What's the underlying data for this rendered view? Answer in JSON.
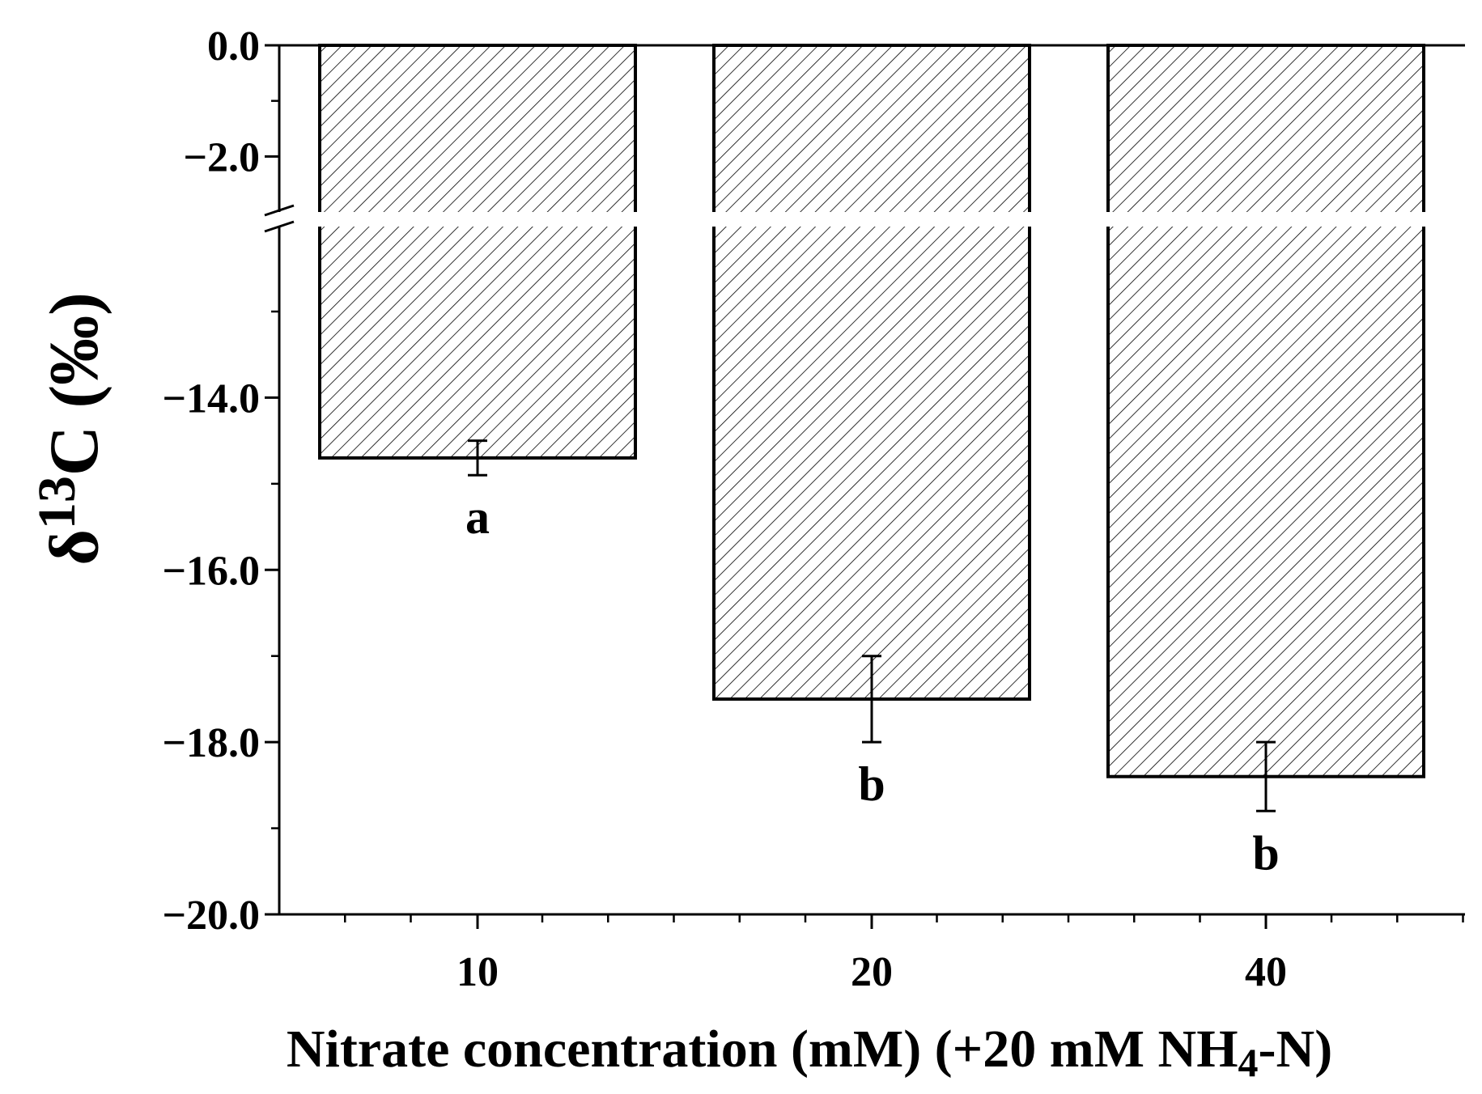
{
  "chart_data": {
    "type": "bar",
    "xlabel": "Nitrate concentration (mM) (+20 mM NH",
    "xlabel_sub": "4",
    "xlabel_tail": "-N)",
    "ylabel_prefix": "δ",
    "ylabel_sup": "13",
    "ylabel_main": "C (‰)",
    "categories": [
      "10",
      "20",
      "40"
    ],
    "values": [
      -14.7,
      -17.5,
      -18.4
    ],
    "errors": [
      0.2,
      0.5,
      0.4
    ],
    "significance": [
      "a",
      "b",
      "b"
    ],
    "y_axis_break": [
      -3.0,
      -13.0
    ],
    "ylim": [
      -20.0,
      0.0
    ],
    "yticks_upper": [
      "0.0",
      "-2.0"
    ],
    "yticks_lower": [
      "-14.0",
      "-16.0",
      "-18.0",
      "-20.0"
    ],
    "bar_pattern": "diagonal hatch",
    "bar_color": "#ffffff",
    "grid": false,
    "legend": "none"
  }
}
